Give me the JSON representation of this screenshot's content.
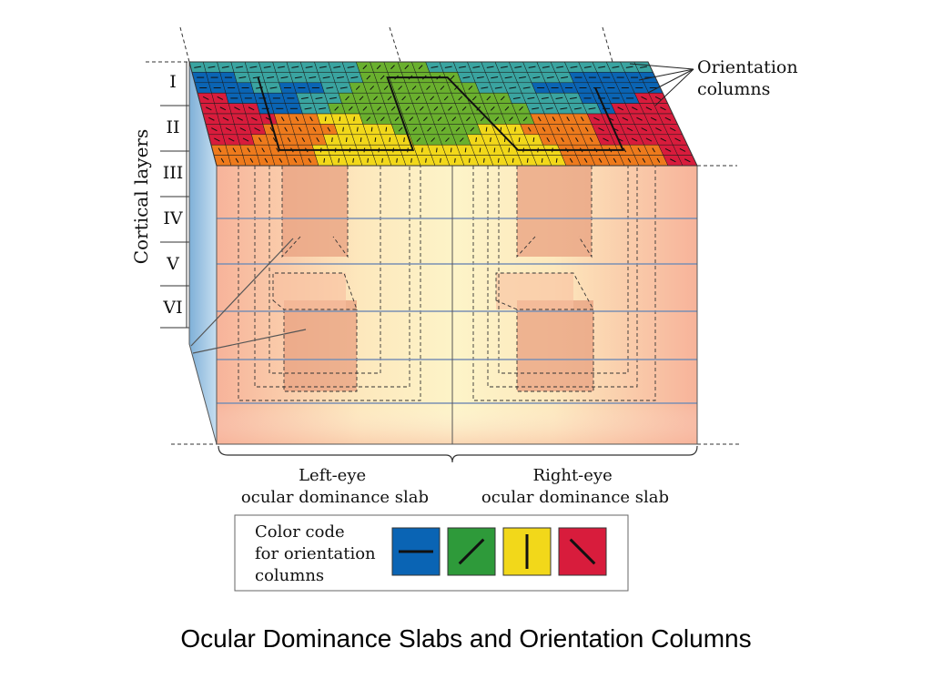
{
  "caption": "Ocular Dominance Slabs and Orientation Columns",
  "axis_label": "Cortical layers",
  "layers": [
    "I",
    "II",
    "III",
    "IV",
    "V",
    "VI"
  ],
  "orientation_label": [
    "Orientation",
    "columns"
  ],
  "left_slab_label": [
    "Left-eye",
    "ocular dominance slab"
  ],
  "right_slab_label": [
    "Right-eye",
    "ocular dominance slab"
  ],
  "legend": {
    "title_lines": [
      "Color code",
      "for orientation",
      "columns"
    ],
    "swatches": [
      {
        "name": "horizontal",
        "color": "#0a64b4",
        "angle": 0
      },
      {
        "name": "oblique-right",
        "color": "#2e9a3a",
        "angle": 45
      },
      {
        "name": "vertical",
        "color": "#f2d81a",
        "angle": 90
      },
      {
        "name": "oblique-left",
        "color": "#d81c3c",
        "angle": 135
      }
    ]
  },
  "colors": {
    "blue": "#0a64b4",
    "teal": "#3aa4a0",
    "green": "#6ab02e",
    "yellow": "#f2d81a",
    "orange": "#ee7a1c",
    "red": "#d81c3c",
    "block_peach": "#f7b998",
    "block_center": "#fdf0bf",
    "side_face": "#8fb8d8"
  }
}
